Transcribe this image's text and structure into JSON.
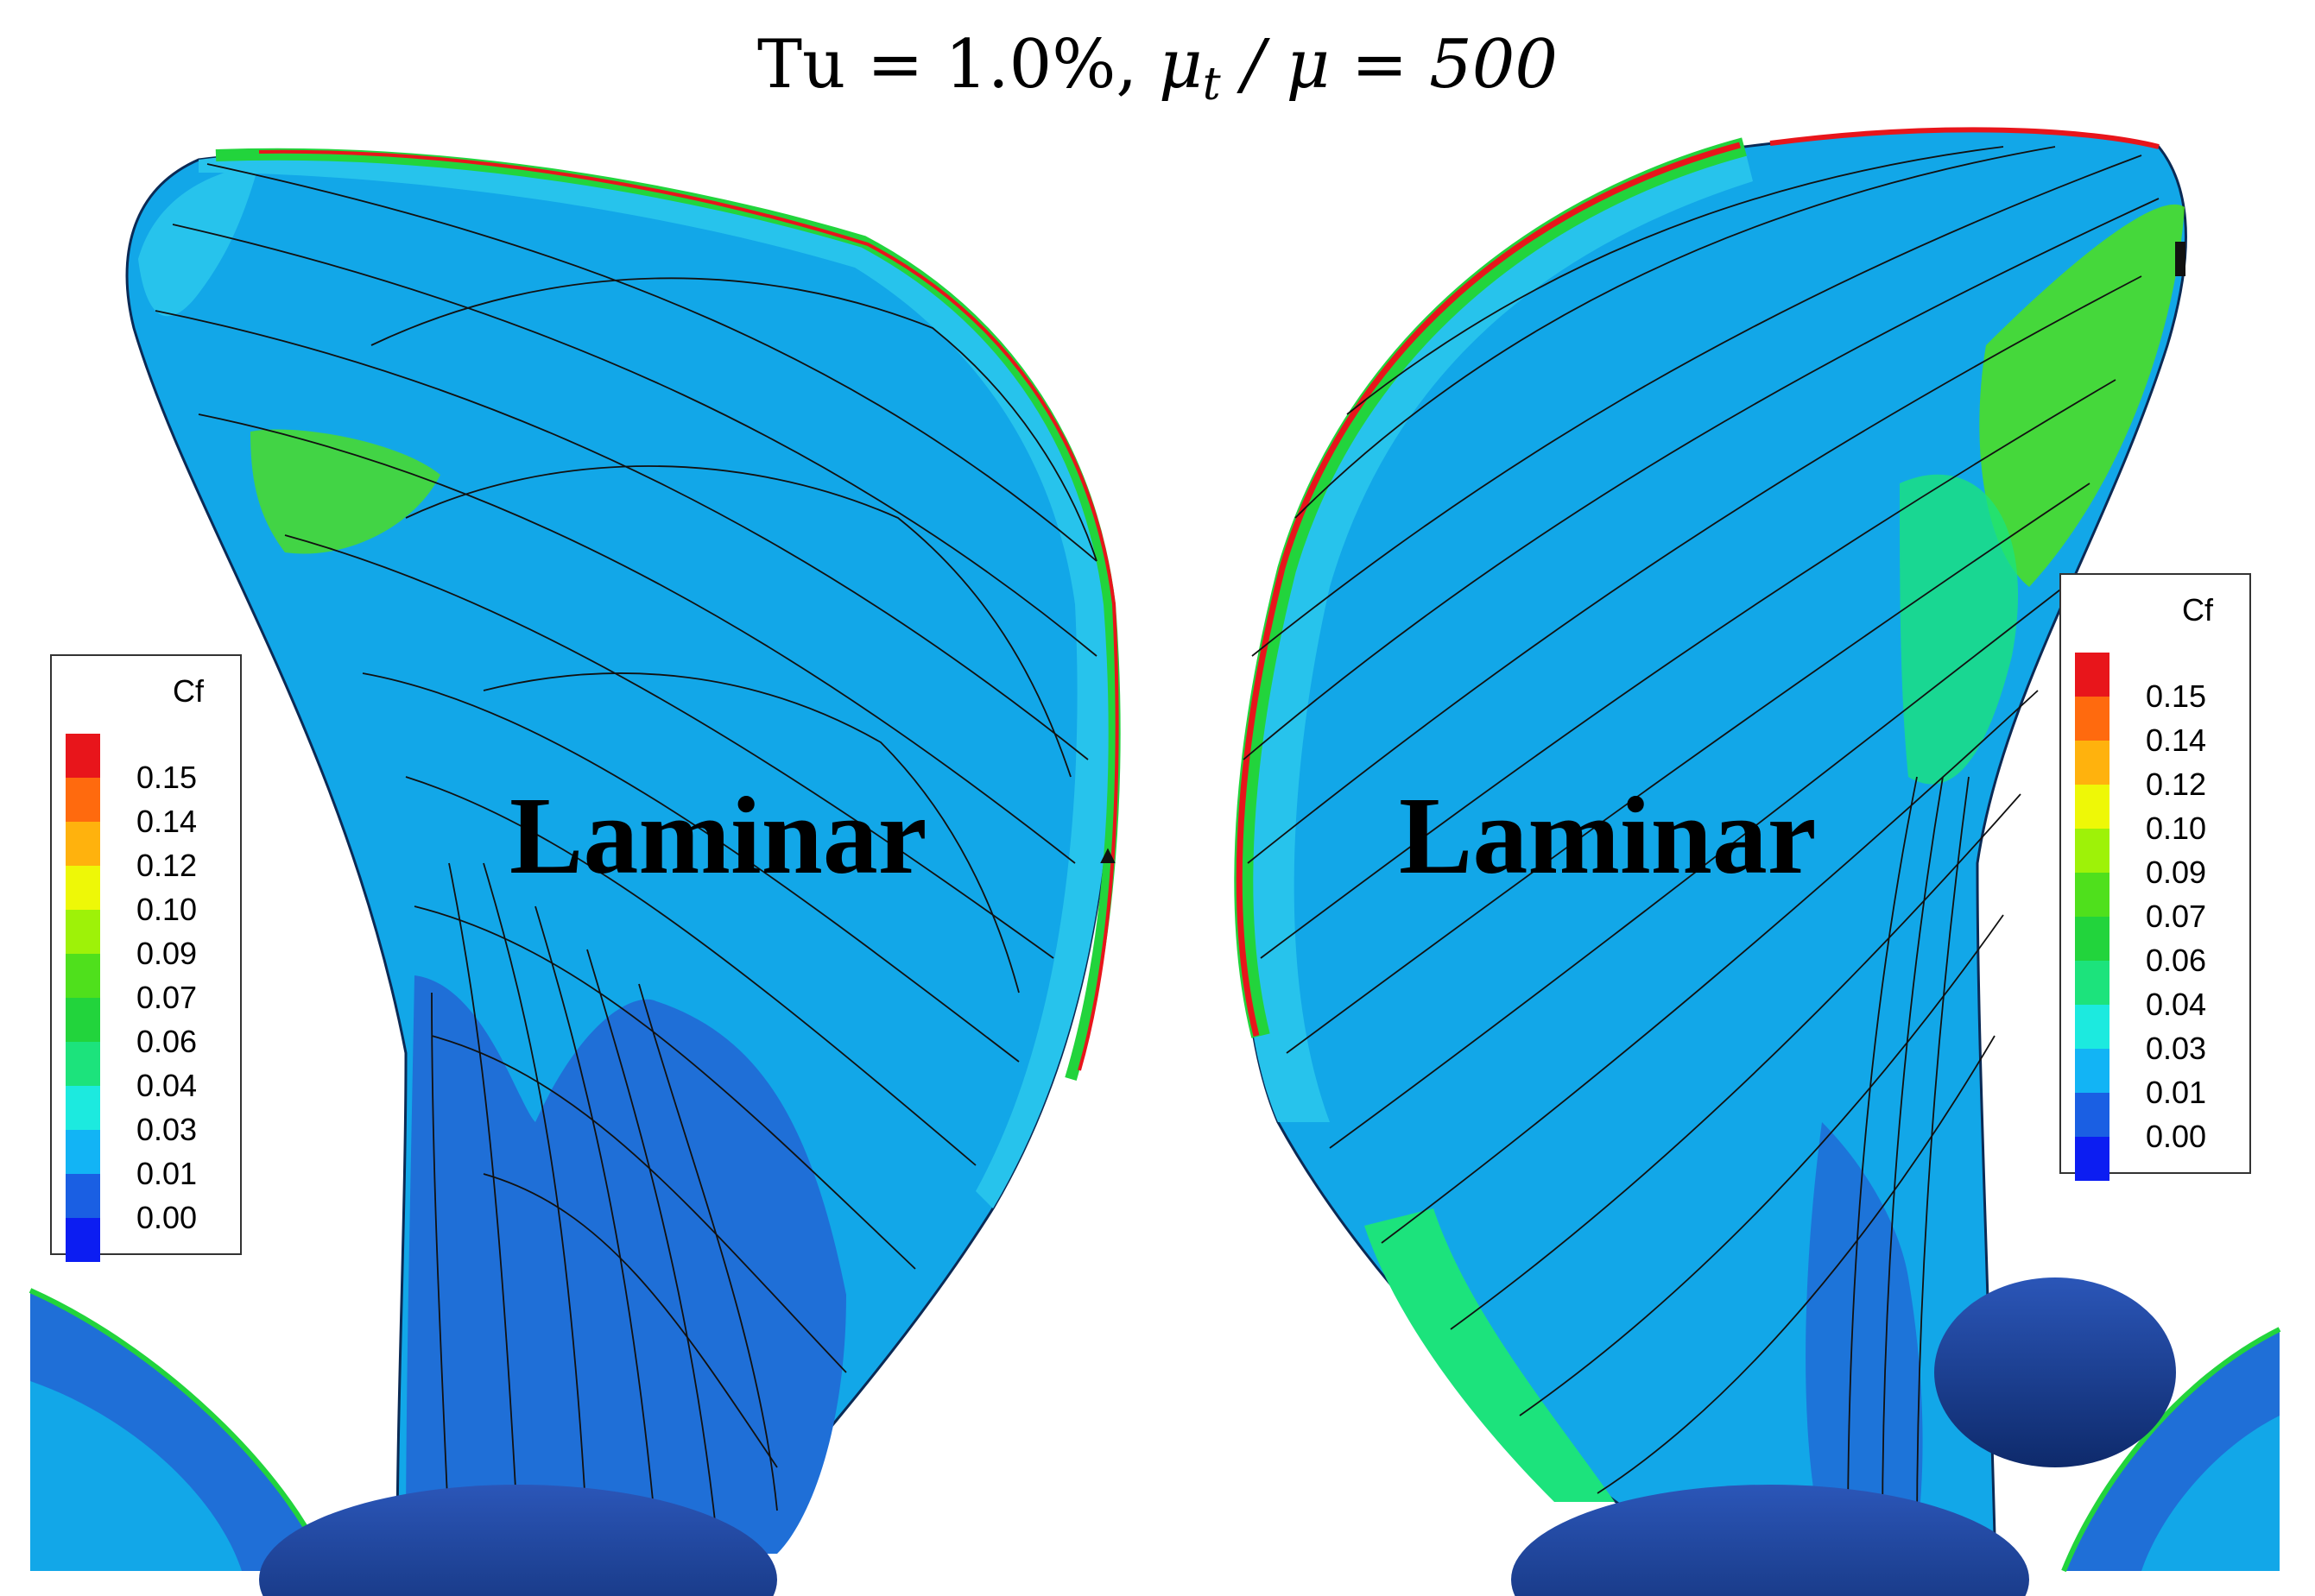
{
  "title": {
    "lhs": "Tu = 1.0%,",
    "mu": "μ",
    "sub": "t",
    "rest": "/ μ = 500"
  },
  "panels": [
    {
      "region_label": "Laminar"
    },
    {
      "region_label": "Laminar"
    }
  ],
  "legend": {
    "title": "Cf",
    "levels": [
      {
        "value": "0.15",
        "color": "#e8151b"
      },
      {
        "value": "0.14",
        "color": "#ff6a0e"
      },
      {
        "value": "0.12",
        "color": "#ffb20d"
      },
      {
        "value": "0.10",
        "color": "#eef807"
      },
      {
        "value": "0.09",
        "color": "#9ef208"
      },
      {
        "value": "0.07",
        "color": "#4fe01c"
      },
      {
        "value": "0.06",
        "color": "#22d43c"
      },
      {
        "value": "0.04",
        "color": "#1ce37c"
      },
      {
        "value": "0.03",
        "color": "#1ceadf"
      },
      {
        "value": "0.01",
        "color": "#12b4f5"
      },
      {
        "value": "0.00",
        "color": "#1a5fe3"
      },
      {
        "value": "",
        "color": "#0c1df2"
      }
    ]
  },
  "colors": {
    "blade_light": "#27c3ec",
    "blade_mid": "#12a7e8",
    "blade_dark": "#1f6fd7",
    "hub": "#1b3f94",
    "edge_green": "#27d36a",
    "edge_red": "#e8151b",
    "streamline": "#111111"
  }
}
